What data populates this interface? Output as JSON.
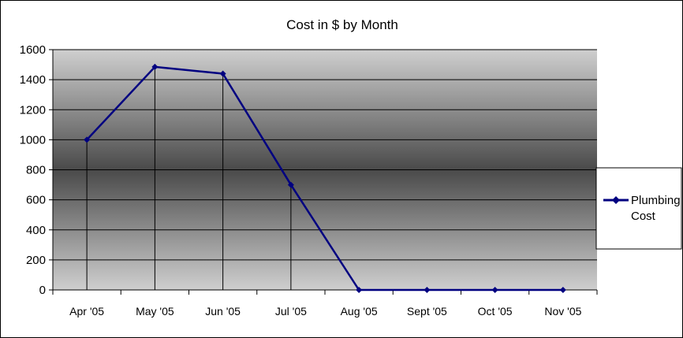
{
  "chart_data": {
    "type": "line",
    "title": "Cost in $ by Month",
    "xlabel": "",
    "ylabel": "",
    "categories": [
      "Apr '05",
      "May '05",
      "Jun '05",
      "Jul '05",
      "Aug '05",
      "Sept '05",
      "Oct '05",
      "Nov '05"
    ],
    "series": [
      {
        "name": "Plumbing Cost",
        "name_lines": [
          "Plumbing",
          "Cost"
        ],
        "values": [
          1000,
          1485,
          1440,
          700,
          0,
          0,
          0,
          0
        ],
        "color": "#000080"
      }
    ],
    "ylim": [
      0,
      1600
    ],
    "yticks": [
      0,
      200,
      400,
      600,
      800,
      1000,
      1200,
      1400,
      1600
    ],
    "grid": true,
    "legend_position": "right"
  }
}
